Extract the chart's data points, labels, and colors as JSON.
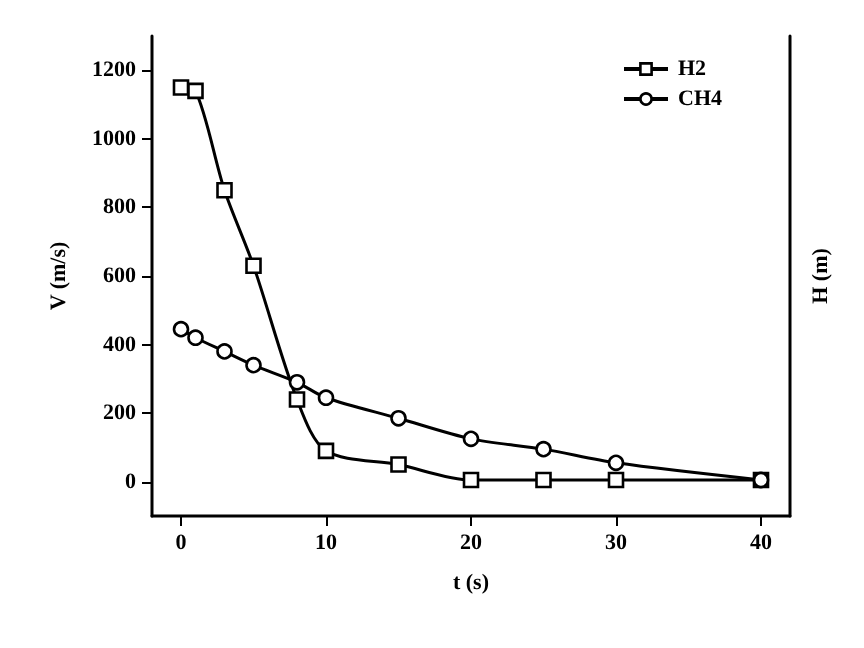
{
  "chart_data": {
    "type": "line",
    "xlabel": "t (s)",
    "ylabel": "V (m/s)",
    "y2label": "H (m)",
    "xlim": [
      -2,
      42
    ],
    "xticks": [
      0,
      10,
      20,
      30,
      40
    ],
    "ylim": [
      -100,
      1300
    ],
    "yticks": [
      0,
      200,
      400,
      600,
      800,
      1000,
      1200
    ],
    "legend": "top right",
    "grid": false,
    "line_style": "solid",
    "series": [
      {
        "name": "H2",
        "color": "#000000",
        "marker": "square",
        "x": [
          0,
          1,
          3,
          5,
          8,
          10,
          15,
          20,
          25,
          30,
          40
        ],
        "values": [
          1150,
          1140,
          850,
          630,
          240,
          90,
          50,
          5,
          5,
          5,
          5
        ]
      },
      {
        "name": "CH4",
        "color": "#000000",
        "marker": "circle",
        "x": [
          0,
          1,
          3,
          5,
          8,
          10,
          15,
          20,
          25,
          30,
          40
        ],
        "values": [
          445,
          420,
          380,
          340,
          290,
          245,
          185,
          125,
          95,
          55,
          5
        ]
      }
    ]
  }
}
